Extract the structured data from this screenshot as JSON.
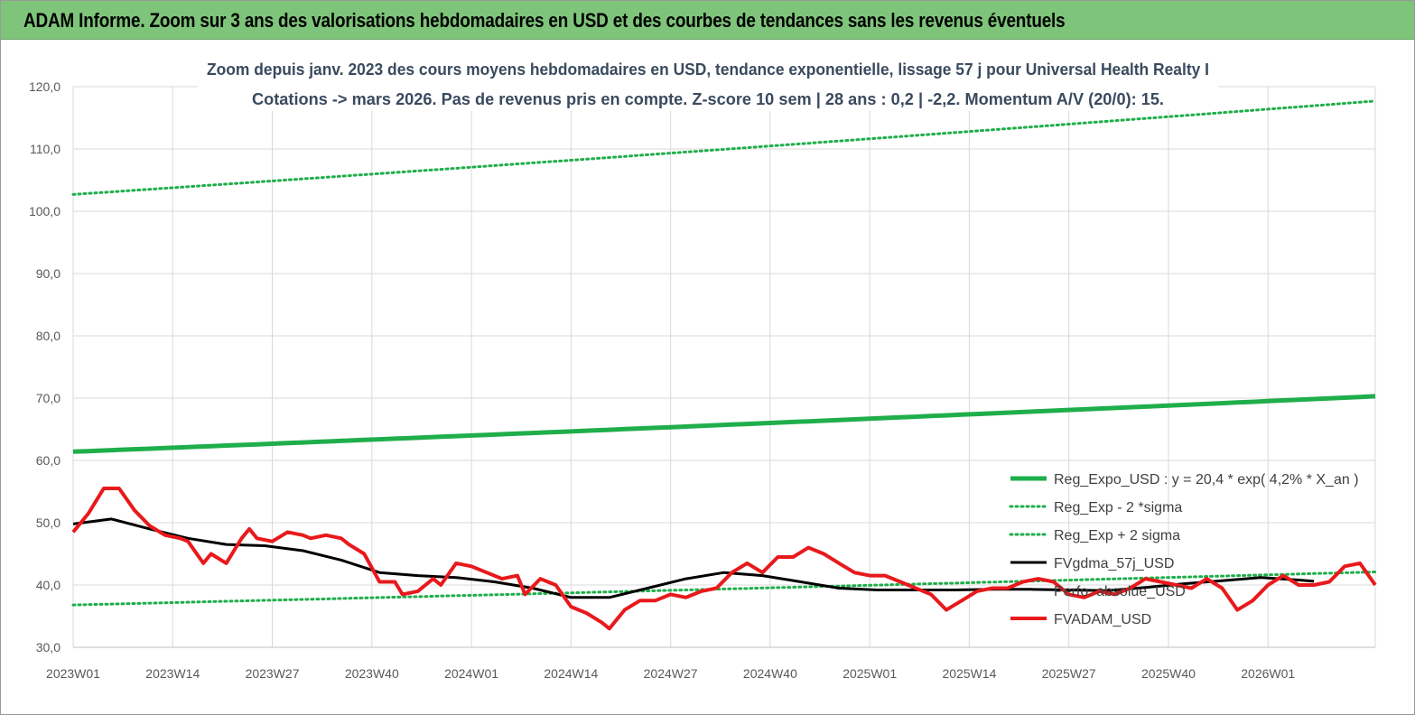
{
  "header": {
    "title": "ADAM Informe. Zoom sur 3 ans des valorisations hebdomadaires en USD et des courbes de tendances sans les revenus éventuels"
  },
  "colors": {
    "header_bg": "#7ec47a",
    "green": "#1fae4b",
    "dotted_green": "#1fae4b",
    "red": "#e8191c",
    "black": "#000000"
  },
  "chart_data": {
    "type": "line",
    "title_line1": "Zoom depuis janv. 2023 des cours moyens hebdomadaires en USD, tendance exponentielle, lissage 57 j pour Universal Health Realty I",
    "title_line2": "Cotations -> mars 2026. Pas de revenus pris en compte. Z-score 10 sem | 28 ans : 0,2 | -2,2. Momentum A/V (20/0): 15.",
    "ylim": [
      30,
      120
    ],
    "yticks": [
      "30,0",
      "40,0",
      "50,0",
      "60,0",
      "70,0",
      "80,0",
      "90,0",
      "100,0",
      "110,0",
      "120,0"
    ],
    "x_labels": [
      "2023W01",
      "2023W14",
      "2023W27",
      "2023W40",
      "2024W01",
      "2024W14",
      "2024W27",
      "2024W40",
      "2025W01",
      "2025W14",
      "2025W27",
      "2025W40",
      "2026W01"
    ],
    "weeks_total": 170,
    "grid": "vertical and horizontal",
    "legend_position": "bottom-right",
    "series": [
      {
        "name": "Reg_Expo_USD : y = 20,4 * exp( 4,2% *  X_an )",
        "style": "solid-thick",
        "color": "#1fae4b",
        "start": 61.4,
        "end": 70.3
      },
      {
        "name": "Reg_Exp - 2 *sigma",
        "style": "dotted",
        "color": "#1fae4b",
        "start": 36.8,
        "end": 42.1
      },
      {
        "name": "Reg_Exp + 2 sigma",
        "style": "dotted",
        "color": "#1fae4b",
        "start": 102.7,
        "end": 117.7
      },
      {
        "name": "FVgdma_57j_USD",
        "style": "solid",
        "color": "#000000",
        "points": [
          [
            0,
            49.8
          ],
          [
            5,
            50.6
          ],
          [
            10,
            49.0
          ],
          [
            15,
            47.5
          ],
          [
            20,
            46.5
          ],
          [
            25,
            46.3
          ],
          [
            30,
            45.5
          ],
          [
            35,
            44.0
          ],
          [
            40,
            42.0
          ],
          [
            45,
            41.5
          ],
          [
            50,
            41.2
          ],
          [
            55,
            40.5
          ],
          [
            60,
            39.5
          ],
          [
            65,
            38.0
          ],
          [
            70,
            38.0
          ],
          [
            75,
            39.5
          ],
          [
            80,
            41.0
          ],
          [
            85,
            42.0
          ],
          [
            90,
            41.5
          ],
          [
            95,
            40.5
          ],
          [
            100,
            39.5
          ],
          [
            105,
            39.2
          ],
          [
            110,
            39.2
          ],
          [
            115,
            39.2
          ],
          [
            120,
            39.3
          ],
          [
            125,
            39.3
          ],
          [
            130,
            39.2
          ],
          [
            135,
            39.1
          ],
          [
            140,
            39.6
          ],
          [
            145,
            40.2
          ],
          [
            150,
            40.7
          ],
          [
            155,
            41.2
          ],
          [
            160,
            40.8
          ],
          [
            162,
            40.6
          ]
        ]
      },
      {
        "name": "Perfo. absolue_USD",
        "style": "solid",
        "color": "#000000",
        "hidden": true
      },
      {
        "name": "FVADAM_USD",
        "style": "solid-thick",
        "color": "#e8191c",
        "points": [
          [
            0,
            48.5
          ],
          [
            2,
            51.5
          ],
          [
            4,
            55.5
          ],
          [
            6,
            55.5
          ],
          [
            8,
            52.0
          ],
          [
            10,
            49.5
          ],
          [
            12,
            48.0
          ],
          [
            14,
            47.5
          ],
          [
            15,
            47.0
          ],
          [
            17,
            43.5
          ],
          [
            18,
            45.0
          ],
          [
            20,
            43.5
          ],
          [
            21,
            45.5
          ],
          [
            22,
            47.5
          ],
          [
            23,
            49.0
          ],
          [
            24,
            47.5
          ],
          [
            26,
            47.0
          ],
          [
            28,
            48.5
          ],
          [
            30,
            48.0
          ],
          [
            31,
            47.5
          ],
          [
            33,
            48.0
          ],
          [
            35,
            47.5
          ],
          [
            36,
            46.5
          ],
          [
            38,
            45.0
          ],
          [
            40,
            40.5
          ],
          [
            42,
            40.5
          ],
          [
            43,
            38.5
          ],
          [
            45,
            39.0
          ],
          [
            47,
            41.0
          ],
          [
            48,
            40.0
          ],
          [
            50,
            43.5
          ],
          [
            52,
            43.0
          ],
          [
            54,
            42.0
          ],
          [
            56,
            41.0
          ],
          [
            58,
            41.5
          ],
          [
            59,
            38.5
          ],
          [
            61,
            41.0
          ],
          [
            63,
            40.0
          ],
          [
            65,
            36.5
          ],
          [
            67,
            35.5
          ],
          [
            69,
            34.0
          ],
          [
            70,
            33.0
          ],
          [
            72,
            36.0
          ],
          [
            74,
            37.5
          ],
          [
            76,
            37.5
          ],
          [
            78,
            38.5
          ],
          [
            80,
            38.0
          ],
          [
            82,
            39.0
          ],
          [
            84,
            39.5
          ],
          [
            86,
            42.0
          ],
          [
            88,
            43.5
          ],
          [
            90,
            42.0
          ],
          [
            92,
            44.5
          ],
          [
            94,
            44.5
          ],
          [
            96,
            46.0
          ],
          [
            98,
            45.0
          ],
          [
            100,
            43.5
          ],
          [
            102,
            42.0
          ],
          [
            104,
            41.5
          ],
          [
            106,
            41.5
          ],
          [
            108,
            40.5
          ],
          [
            110,
            39.5
          ],
          [
            112,
            38.5
          ],
          [
            114,
            36.0
          ],
          [
            116,
            37.5
          ],
          [
            118,
            39.0
          ],
          [
            120,
            39.5
          ],
          [
            122,
            39.5
          ],
          [
            124,
            40.5
          ],
          [
            126,
            41.0
          ],
          [
            128,
            40.5
          ],
          [
            130,
            38.5
          ],
          [
            132,
            38.0
          ],
          [
            134,
            39.0
          ],
          [
            136,
            38.5
          ],
          [
            138,
            39.5
          ],
          [
            140,
            41.0
          ],
          [
            142,
            40.5
          ],
          [
            144,
            40.0
          ],
          [
            146,
            39.5
          ],
          [
            148,
            41.0
          ],
          [
            150,
            39.5
          ],
          [
            152,
            36.0
          ],
          [
            154,
            37.5
          ],
          [
            156,
            40.0
          ],
          [
            158,
            41.5
          ],
          [
            160,
            40.0
          ],
          [
            162,
            40.0
          ],
          [
            164,
            40.5
          ],
          [
            166,
            43.0
          ],
          [
            168,
            43.5
          ],
          [
            170,
            40.0
          ]
        ]
      }
    ]
  }
}
